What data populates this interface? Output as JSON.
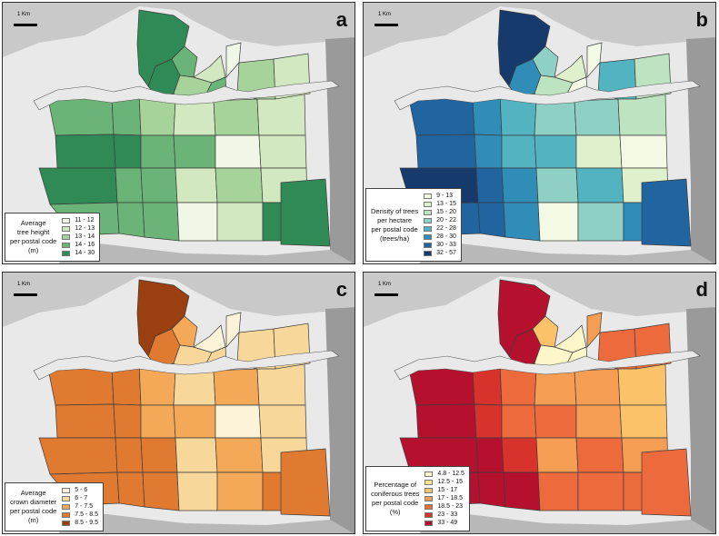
{
  "scale_label": "1 Km",
  "panels": [
    {
      "letter": "a",
      "legend_title": "Average\ntree height\nper postal code\n(m)",
      "classes": [
        {
          "label": "11 - 12",
          "color": "#f1f7e6"
        },
        {
          "label": "12 - 13",
          "color": "#d2e8c0"
        },
        {
          "label": "13 - 14",
          "color": "#a6d39a"
        },
        {
          "label": "14 - 16",
          "color": "#6bb477"
        },
        {
          "label": "14 - 30",
          "color": "#2f8a56"
        }
      ]
    },
    {
      "letter": "b",
      "legend_title": "Density of trees\nper hectare\nper postal code\n(trees/ha)",
      "classes": [
        {
          "label": "9 - 13",
          "color": "#f4f9e6"
        },
        {
          "label": "13 - 15",
          "color": "#dff0cc"
        },
        {
          "label": "15 - 20",
          "color": "#bde3c0"
        },
        {
          "label": "20 - 22",
          "color": "#8ed0c3"
        },
        {
          "label": "22 - 28",
          "color": "#52b4c0"
        },
        {
          "label": "28 - 30",
          "color": "#2f8db8"
        },
        {
          "label": "30 - 33",
          "color": "#2064a0"
        },
        {
          "label": "32 - 57",
          "color": "#173a6d"
        }
      ]
    },
    {
      "letter": "c",
      "legend_title": "Average\ncrown diameter\nper postal code\n(m)",
      "classes": [
        {
          "label": "5 - 6",
          "color": "#fdf3d8"
        },
        {
          "label": "6 - 7",
          "color": "#f8d79b"
        },
        {
          "label": "7 - 7.5",
          "color": "#f3a957"
        },
        {
          "label": "7.5 - 8.5",
          "color": "#e07a31"
        },
        {
          "label": "8.5 - 9.5",
          "color": "#9a3f0f"
        }
      ]
    },
    {
      "letter": "d",
      "legend_title": "Percentage of\nconiferous trees\nper postal code\n(%)",
      "classes": [
        {
          "label": "4.8 - 12.5",
          "color": "#fdf6c8"
        },
        {
          "label": "12.5 - 15",
          "color": "#fde08c"
        },
        {
          "label": "15 - 17",
          "color": "#fbc26a"
        },
        {
          "label": "17 - 18.5",
          "color": "#f69d54"
        },
        {
          "label": "18.5 - 23",
          "color": "#ec6a3c"
        },
        {
          "label": "23 - 33",
          "color": "#d8322d"
        },
        {
          "label": "33 - 49",
          "color": "#b5112f"
        }
      ]
    }
  ],
  "region_classes": {
    "a": [
      4,
      4,
      3,
      2,
      1,
      3,
      3,
      3,
      2,
      1,
      2,
      1,
      4,
      4,
      3,
      3,
      0,
      1,
      4,
      3,
      3,
      1,
      2,
      1,
      3,
      3,
      3,
      0,
      1,
      4,
      2,
      1,
      0,
      4
    ],
    "b": [
      7,
      5,
      3,
      2,
      1,
      0,
      6,
      5,
      4,
      3,
      3,
      2,
      6,
      5,
      4,
      4,
      1,
      0,
      7,
      6,
      5,
      3,
      4,
      1,
      6,
      6,
      5,
      0,
      3,
      5,
      4,
      2,
      0,
      6
    ],
    "c": [
      4,
      3,
      2,
      1,
      0,
      1,
      3,
      3,
      2,
      1,
      2,
      1,
      3,
      3,
      2,
      2,
      0,
      1,
      3,
      3,
      3,
      1,
      2,
      1,
      3,
      3,
      3,
      1,
      2,
      3,
      1,
      1,
      0,
      3
    ],
    "d": [
      6,
      6,
      2,
      0,
      0,
      0,
      6,
      5,
      4,
      3,
      3,
      2,
      6,
      5,
      4,
      4,
      3,
      2,
      6,
      6,
      5,
      3,
      4,
      3,
      6,
      6,
      6,
      4,
      4,
      4,
      4,
      4,
      3,
      4
    ]
  }
}
